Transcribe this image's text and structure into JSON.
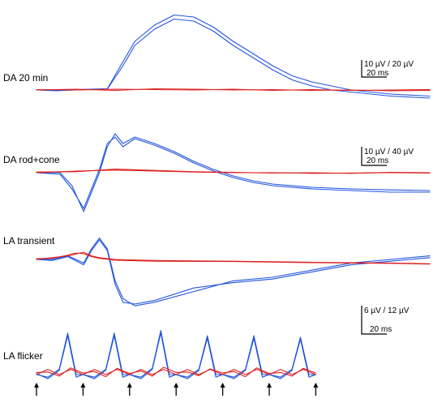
{
  "chart_data": [
    {
      "type": "line",
      "panel_label": "DA 20 min",
      "scale_bar": {
        "amplitude": "10 µV / 20 µV",
        "time": "20 ms"
      },
      "series": [
        {
          "color": "#2255dd",
          "x": [
            0,
            5,
            10,
            18,
            22,
            25,
            30,
            35,
            40,
            45,
            50,
            55,
            60,
            65,
            70,
            75,
            80,
            85,
            90,
            100
          ],
          "y": [
            0,
            0,
            0.1,
            0.3,
            7,
            12,
            16,
            18.5,
            18,
            15.5,
            12,
            9,
            6,
            3.5,
            2,
            1,
            0,
            -0.5,
            -1,
            -1.5
          ]
        },
        {
          "color": "#2255dd",
          "x": [
            0,
            5,
            10,
            18,
            22,
            25,
            30,
            35,
            40,
            45,
            50,
            55,
            60,
            65,
            70,
            75,
            80,
            85,
            90,
            100
          ],
          "y": [
            0,
            -0.2,
            0,
            0.2,
            6,
            11,
            15,
            17.5,
            17,
            14.5,
            11,
            8,
            5,
            2.5,
            1,
            0,
            -0.5,
            -1,
            -1.5,
            -2
          ]
        },
        {
          "color": "#dd2222",
          "x": [
            0,
            10,
            20,
            30,
            40,
            50,
            60,
            70,
            80,
            90,
            100
          ],
          "y": [
            0,
            0.2,
            -0.1,
            0.3,
            0.2,
            0,
            0.1,
            -0.1,
            0,
            -0.2,
            -0.1
          ]
        },
        {
          "color": "#dd2222",
          "x": [
            0,
            10,
            20,
            30,
            40,
            50,
            60,
            70,
            80,
            90,
            100
          ],
          "y": [
            0.1,
            0,
            0.2,
            0.1,
            0,
            0.2,
            -0.1,
            0.1,
            -0.1,
            0,
            0.1
          ]
        }
      ]
    },
    {
      "type": "line",
      "panel_label": "DA rod+cone",
      "scale_bar": {
        "amplitude": "10 µV / 40 µV",
        "time": "20 ms"
      },
      "series": [
        {
          "color": "#2255dd",
          "x": [
            0,
            6,
            9,
            12,
            16,
            18,
            20,
            22,
            25,
            30,
            35,
            40,
            45,
            50,
            55,
            60,
            70,
            80,
            90,
            100
          ],
          "y": [
            0,
            0,
            -4,
            -12,
            0,
            8,
            12,
            9,
            11,
            9,
            6.5,
            3.5,
            1,
            -1,
            -2.5,
            -3.5,
            -4.5,
            -5,
            -5.3,
            -5.5
          ]
        },
        {
          "color": "#2255dd",
          "x": [
            0,
            6,
            9,
            12,
            16,
            18,
            20,
            22,
            25,
            30,
            35,
            40,
            45,
            50,
            55,
            60,
            70,
            80,
            90,
            100
          ],
          "y": [
            0,
            -0.5,
            -5,
            -11,
            1,
            9,
            11,
            8,
            10.5,
            8.5,
            6,
            3,
            0.5,
            -1.5,
            -3,
            -4,
            -5,
            -5.5,
            -6,
            -6
          ]
        },
        {
          "color": "#dd2222",
          "x": [
            0,
            10,
            20,
            30,
            40,
            50,
            60,
            70,
            80,
            90,
            100
          ],
          "y": [
            0,
            0.5,
            0.8,
            0.5,
            0.2,
            0,
            0,
            -0.2,
            -0.1,
            0,
            -0.1
          ]
        },
        {
          "color": "#dd2222",
          "x": [
            0,
            10,
            20,
            30,
            40,
            50,
            60,
            70,
            80,
            90,
            100
          ],
          "y": [
            0.2,
            0.3,
            1.1,
            0.7,
            0.3,
            0.1,
            -0.1,
            0,
            -0.2,
            0.1,
            0
          ]
        }
      ]
    },
    {
      "type": "line",
      "panel_label": "LA transient",
      "series": [
        {
          "color": "#2255dd",
          "x": [
            0,
            4,
            8,
            12,
            14,
            16,
            18,
            20,
            22,
            25,
            30,
            40,
            50,
            60,
            70,
            80,
            90,
            95,
            100
          ],
          "y": [
            0,
            0,
            1,
            -1,
            3,
            6,
            3,
            -6,
            -11,
            -13,
            -12,
            -9,
            -6,
            -5,
            -3,
            -1,
            0,
            0.5,
            1
          ]
        },
        {
          "color": "#2255dd",
          "x": [
            0,
            4,
            8,
            12,
            14,
            16,
            18,
            20,
            22,
            25,
            30,
            40,
            50,
            60,
            70,
            80,
            90,
            95,
            100
          ],
          "y": [
            0,
            -0.3,
            0.8,
            -1.5,
            2.5,
            5.5,
            2.5,
            -7,
            -12,
            -12.5,
            -11.5,
            -8,
            -6.5,
            -5.5,
            -3.5,
            -1.5,
            -0.5,
            0,
            0.5
          ]
        },
        {
          "color": "#dd2222",
          "x": [
            0,
            4,
            8,
            10,
            12,
            14,
            16,
            20,
            30,
            50,
            70,
            90,
            100
          ],
          "y": [
            0,
            0.5,
            1,
            1.5,
            2,
            1,
            0.5,
            0,
            -0.3,
            -0.5,
            -0.8,
            -1,
            -1.2
          ]
        },
        {
          "color": "#dd2222",
          "x": [
            0,
            4,
            8,
            10,
            12,
            14,
            16,
            20,
            30,
            50,
            70,
            90,
            100
          ],
          "y": [
            0.2,
            0.3,
            1.2,
            1.8,
            1.6,
            0.8,
            0.3,
            -0.2,
            -0.5,
            -0.6,
            -0.9,
            -1.1,
            -1.3
          ]
        }
      ]
    },
    {
      "type": "line",
      "panel_label": "LA flicker",
      "scale_bar": {
        "amplitude": "6 µV / 12 µV",
        "time": "20 ms"
      },
      "stimulus_times": [
        0,
        16.4,
        32.8,
        49.2,
        65.6,
        82,
        98.4
      ],
      "series": [
        {
          "color": "#2255dd",
          "x": [
            0,
            4,
            8,
            11,
            14,
            16.4,
            20.4,
            24.4,
            27.4,
            30.4,
            32.8,
            36.8,
            40.8,
            43.8,
            46.8,
            49.2,
            53.2,
            57.2,
            60.2,
            63.2,
            65.6,
            69.6,
            73.6,
            76.6,
            79.6,
            82,
            86,
            90,
            93,
            96,
            98.4
          ],
          "y": [
            0,
            -0.5,
            1,
            8,
            0,
            0,
            -0.5,
            1,
            8,
            0,
            0,
            -0.5,
            1.2,
            8.5,
            0,
            0,
            -0.5,
            1,
            7.5,
            0,
            0,
            -0.5,
            1,
            7.5,
            0,
            0,
            -0.5,
            1,
            7.2,
            0,
            0
          ]
        },
        {
          "color": "#2255dd",
          "x": [
            0,
            4,
            8,
            11,
            14,
            16.4,
            20.4,
            24.4,
            27.4,
            30.4,
            32.8,
            36.8,
            40.8,
            43.8,
            46.8,
            49.2,
            53.2,
            57.2,
            60.2,
            63.2,
            65.6,
            69.6,
            73.6,
            76.6,
            79.6,
            82,
            86,
            90,
            93,
            96,
            98.4
          ],
          "y": [
            0.2,
            -0.8,
            0.8,
            7.5,
            -0.5,
            0,
            -0.8,
            0.8,
            7.5,
            -0.5,
            0,
            -0.8,
            1,
            8,
            -0.5,
            0,
            -0.8,
            0.8,
            7,
            -0.5,
            0,
            -0.8,
            0.8,
            7,
            -0.5,
            0,
            -0.8,
            0.8,
            6.8,
            -0.5,
            0
          ]
        },
        {
          "color": "#dd2222",
          "x": [
            0,
            4,
            8,
            12,
            16.4,
            20.4,
            24.4,
            28.4,
            32.8,
            36.8,
            40.8,
            44.8,
            49.2,
            53.2,
            57.2,
            61.2,
            65.6,
            69.6,
            73.6,
            77.6,
            82,
            86,
            90,
            94,
            98.4
          ],
          "y": [
            0,
            1,
            0,
            1,
            0,
            1,
            0,
            1,
            0,
            1,
            0,
            1,
            0,
            1,
            0,
            1,
            0,
            1,
            0,
            1,
            0,
            1,
            0,
            1,
            0
          ]
        },
        {
          "color": "#dd2222",
          "x": [
            0,
            4,
            8,
            12,
            16.4,
            20.4,
            24.4,
            28.4,
            32.8,
            36.8,
            40.8,
            44.8,
            49.2,
            53.2,
            57.2,
            61.2,
            65.6,
            69.6,
            73.6,
            77.6,
            82,
            86,
            90,
            94,
            98.4
          ],
          "y": [
            0.4,
            0.5,
            -0.3,
            1.3,
            0.3,
            0.6,
            -0.4,
            1.2,
            0.2,
            0.7,
            -0.3,
            1.4,
            0.4,
            0.5,
            -0.2,
            1.1,
            0.3,
            0.6,
            -0.4,
            1.3,
            0.2,
            0.4,
            -0.3,
            1.2,
            0.3
          ]
        }
      ]
    }
  ]
}
